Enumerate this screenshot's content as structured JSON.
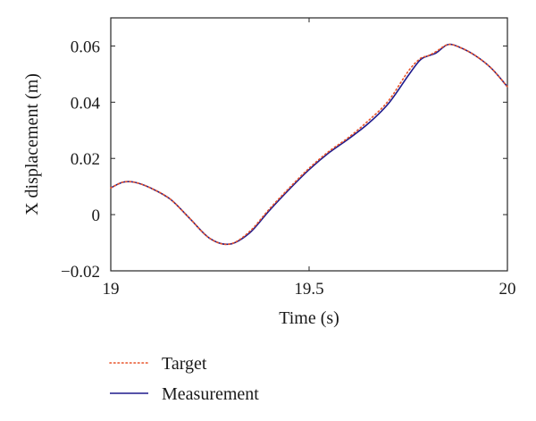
{
  "chart_data": {
    "type": "line",
    "xlabel": "Time (s)",
    "ylabel": "X displacement (m)",
    "xlim": [
      19,
      20
    ],
    "ylim": [
      -0.02,
      0.07
    ],
    "xticks": [
      19,
      19.5,
      20
    ],
    "xtick_labels": [
      "19",
      "19.5",
      "20"
    ],
    "yticks": [
      -0.02,
      0,
      0.02,
      0.04,
      0.06
    ],
    "ytick_labels": [
      "−0.02",
      "0",
      "0.02",
      "0.04",
      "0.06"
    ],
    "grid": false,
    "legend_position": "bottom-left, below plot",
    "series": [
      {
        "name": "Target",
        "color": "#e8542a",
        "style": "dotted",
        "x": [
          19.0,
          19.03,
          19.06,
          19.1,
          19.15,
          19.2,
          19.25,
          19.3,
          19.35,
          19.4,
          19.45,
          19.5,
          19.55,
          19.6,
          19.65,
          19.7,
          19.75,
          19.78,
          19.8,
          19.82,
          19.85,
          19.88,
          19.92,
          19.96,
          20.0
        ],
        "y": [
          0.0095,
          0.0115,
          0.0115,
          0.0095,
          0.0055,
          -0.0015,
          -0.0085,
          -0.0105,
          -0.006,
          0.002,
          0.0095,
          0.0165,
          0.0225,
          0.0275,
          0.0335,
          0.0405,
          0.051,
          0.0555,
          0.0565,
          0.058,
          0.0605,
          0.0595,
          0.0565,
          0.052,
          0.0455
        ]
      },
      {
        "name": "Measurement",
        "color": "#1f1a8c",
        "style": "solid",
        "x": [
          19.0,
          19.03,
          19.06,
          19.1,
          19.15,
          19.2,
          19.25,
          19.3,
          19.35,
          19.4,
          19.45,
          19.5,
          19.55,
          19.6,
          19.65,
          19.7,
          19.75,
          19.78,
          19.8,
          19.82,
          19.85,
          19.88,
          19.92,
          19.96,
          20.0
        ],
        "y": [
          0.0095,
          0.0115,
          0.0115,
          0.0095,
          0.0055,
          -0.0015,
          -0.0085,
          -0.0105,
          -0.0065,
          0.0015,
          0.009,
          0.016,
          0.022,
          0.027,
          0.0325,
          0.0395,
          0.0495,
          0.055,
          0.0565,
          0.0575,
          0.0605,
          0.0595,
          0.0565,
          0.052,
          0.0455
        ]
      }
    ]
  }
}
